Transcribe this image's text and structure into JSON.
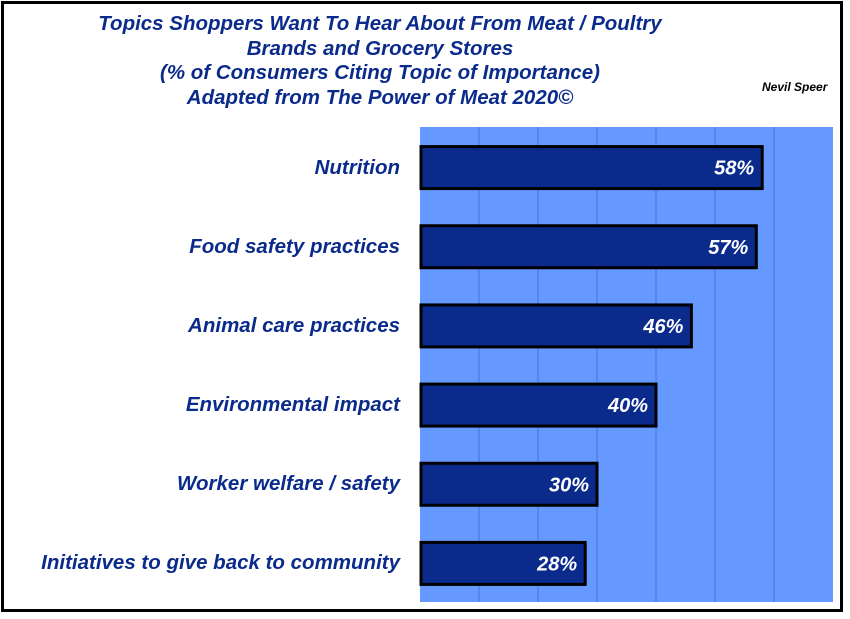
{
  "chart_data": {
    "type": "bar",
    "orientation": "horizontal",
    "title_lines": [
      "Topics Shoppers Want To Hear About From Meat / Poultry",
      "Brands and Grocery Stores",
      "(% of Consumers Citing Topic of Importance)",
      "Adapted from The Power of Meat 2020©"
    ],
    "author": "Nevil Speer",
    "categories": [
      "Nutrition",
      "Food safety practices",
      "Animal care practices",
      "Environmental impact",
      "Worker welfare / safety",
      "Initiatives to give back to community"
    ],
    "values": [
      58,
      57,
      46,
      40,
      30,
      28
    ],
    "data_labels": [
      "58%",
      "57%",
      "46%",
      "40%",
      "30%",
      "28%"
    ],
    "xlim": [
      0,
      70
    ],
    "x_gridline_step": 10,
    "grid": true,
    "legend": false,
    "colors": {
      "plot_background": "#6699ff",
      "bar_fill": "#0a2a8c",
      "bar_border": "#000000",
      "gridline": "#4a6fd8",
      "text": "#0a2a8c"
    }
  }
}
